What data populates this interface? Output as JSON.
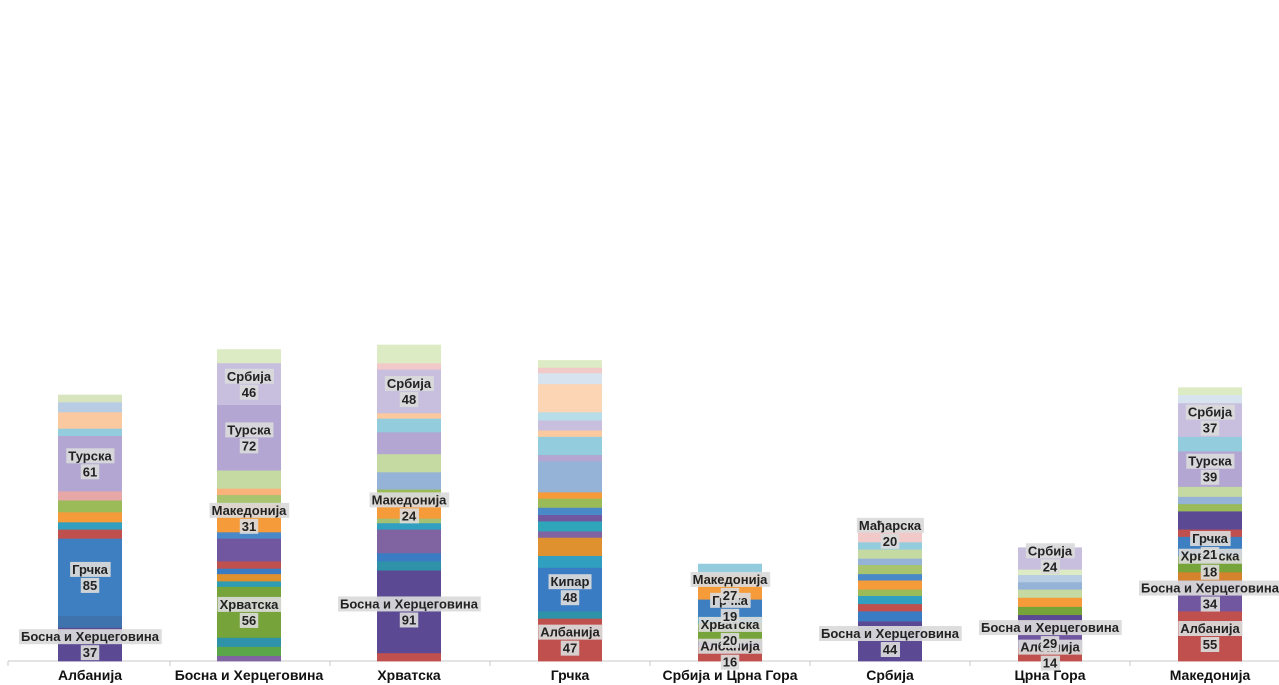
{
  "chart_data": {
    "type": "bar",
    "stacked": true,
    "categories": [
      "Албанија",
      "Босна и Херцеговина",
      "Хрватска",
      "Грчка",
      "Србија и Црна Гора",
      "Србија",
      "Црна Гора",
      "Македонија"
    ],
    "stacks": [
      {
        "category": "Албанија",
        "segments": [
          {
            "value": 37,
            "color": "#5b4a93",
            "label": "Босна и Херцеговина"
          },
          {
            "value": 13,
            "color": "#3e73ad"
          },
          {
            "value": 85,
            "color": "#3e7fc1",
            "label": "Грчка"
          },
          {
            "value": 10,
            "color": "#c0504d"
          },
          {
            "value": 8,
            "color": "#31a0c0"
          },
          {
            "value": 11,
            "color": "#f59b3a"
          },
          {
            "value": 13,
            "color": "#9bbb59"
          },
          {
            "value": 10,
            "color": "#e6a7a6"
          },
          {
            "value": 61,
            "color": "#b3a6d2",
            "label": "Турска"
          },
          {
            "value": 8,
            "color": "#93cddd"
          },
          {
            "value": 18,
            "color": "#fbc9a0"
          },
          {
            "value": 11,
            "color": "#b8cce4"
          },
          {
            "value": 8,
            "color": "#d7e4bd"
          }
        ]
      },
      {
        "category": "Босна и Херцеговина",
        "segments": [
          {
            "value": 6,
            "color": "#8064a2"
          },
          {
            "value": 10,
            "color": "#5aa648"
          },
          {
            "value": 10,
            "color": "#2e93a8"
          },
          {
            "value": 56,
            "color": "#77a33b",
            "label": "Хрватска"
          },
          {
            "value": 6,
            "color": "#2e9cb2"
          },
          {
            "value": 8,
            "color": "#e0912f"
          },
          {
            "value": 6,
            "color": "#3a7cc4"
          },
          {
            "value": 8,
            "color": "#c0504d"
          },
          {
            "value": 25,
            "color": "#7057a0"
          },
          {
            "value": 7,
            "color": "#4a89c8"
          },
          {
            "value": 31,
            "color": "#f59b3a",
            "label": "Македонија"
          },
          {
            "value": 10,
            "color": "#a9c46f"
          },
          {
            "value": 7,
            "color": "#f8b27a"
          },
          {
            "value": 20,
            "color": "#c5d9a2"
          },
          {
            "value": 72,
            "color": "#b3a6d2",
            "label": "Турска"
          },
          {
            "value": 46,
            "color": "#c8bfdf",
            "label": "Србија"
          },
          {
            "value": 15,
            "color": "#dcebc3"
          }
        ]
      },
      {
        "category": "Хрватска",
        "segments": [
          {
            "value": 9,
            "color": "#c0504d"
          },
          {
            "value": 91,
            "color": "#5b4a93",
            "label": "Босна и Херцеговина"
          },
          {
            "value": 10,
            "color": "#2e93a8"
          },
          {
            "value": 9,
            "color": "#3a7cc4"
          },
          {
            "value": 26,
            "color": "#8064a2"
          },
          {
            "value": 7,
            "color": "#31a0c0"
          },
          {
            "value": 5,
            "color": "#a4c072"
          },
          {
            "value": 24,
            "color": "#f59b3a",
            "label": "Македонија"
          },
          {
            "value": 8,
            "color": "#9bbb59"
          },
          {
            "value": 19,
            "color": "#95b3d7"
          },
          {
            "value": 20,
            "color": "#c5d9a2"
          },
          {
            "value": 24,
            "color": "#b3a6d2"
          },
          {
            "value": 15,
            "color": "#93cddd"
          },
          {
            "value": 6,
            "color": "#fbc9a0"
          },
          {
            "value": 48,
            "color": "#c8bfdf",
            "label": "Србија"
          },
          {
            "value": 7,
            "color": "#f2c9c9"
          },
          {
            "value": 20,
            "color": "#dcebc3"
          }
        ]
      },
      {
        "category": "Грчка",
        "segments": [
          {
            "value": 47,
            "color": "#c0504d",
            "label": "Албанија"
          },
          {
            "value": 8,
            "color": "#2e93a8"
          },
          {
            "value": 48,
            "color": "#3a7cc4",
            "label": "Кипар"
          },
          {
            "value": 13,
            "color": "#31a0c0"
          },
          {
            "value": 20,
            "color": "#e0912f"
          },
          {
            "value": 7,
            "color": "#8064a2"
          },
          {
            "value": 11,
            "color": "#2ea5b9"
          },
          {
            "value": 7,
            "color": "#7057a0"
          },
          {
            "value": 8,
            "color": "#4a89c8"
          },
          {
            "value": 10,
            "color": "#9bbb59"
          },
          {
            "value": 7,
            "color": "#f59b3a"
          },
          {
            "value": 34,
            "color": "#95b3d7"
          },
          {
            "value": 7,
            "color": "#b3a6d2"
          },
          {
            "value": 20,
            "color": "#93cddd"
          },
          {
            "value": 7,
            "color": "#fbc9a0"
          },
          {
            "value": 11,
            "color": "#c8bfdf"
          },
          {
            "value": 9,
            "color": "#b7dde8"
          },
          {
            "value": 31,
            "color": "#fcd5b5"
          },
          {
            "value": 12,
            "color": "#d7e4f0"
          },
          {
            "value": 6,
            "color": "#f2c9c9"
          },
          {
            "value": 8,
            "color": "#dcebc3"
          }
        ]
      },
      {
        "category": "Србија и Црна Гора",
        "segments": [
          {
            "value": 16,
            "color": "#c0504d",
            "label": "Албанија"
          },
          {
            "value": 6,
            "color": "#7057a0"
          },
          {
            "value": 20,
            "color": "#77a33b",
            "label": "Хрватска"
          },
          {
            "value": 7,
            "color": "#31a0c0"
          },
          {
            "value": 19,
            "color": "#3e7fc1",
            "label": "Грчка"
          },
          {
            "value": 27,
            "color": "#f59b3a",
            "label": "Македонија"
          },
          {
            "value": 12,
            "color": "#93cddd"
          }
        ]
      },
      {
        "category": "Србија",
        "segments": [
          {
            "value": 44,
            "color": "#5b4a93",
            "label": "Босна и Херцеговина"
          },
          {
            "value": 11,
            "color": "#3a7cc4"
          },
          {
            "value": 8,
            "color": "#c0504d"
          },
          {
            "value": 9,
            "color": "#31a0c0"
          },
          {
            "value": 7,
            "color": "#9bbb59"
          },
          {
            "value": 10,
            "color": "#f59b3a"
          },
          {
            "value": 7,
            "color": "#4a89c8"
          },
          {
            "value": 10,
            "color": "#a9c46f"
          },
          {
            "value": 7,
            "color": "#95b3d7"
          },
          {
            "value": 10,
            "color": "#c5d9a2"
          },
          {
            "value": 8,
            "color": "#93cddd"
          },
          {
            "value": 20,
            "color": "#f2c9c9",
            "label": "Мађарска"
          }
        ]
      },
      {
        "category": "Црна Гора",
        "segments": [
          {
            "value": 14,
            "color": "#c0504d",
            "label": "Албанија"
          },
          {
            "value": 29,
            "color": "#7057a0",
            "label": "Босна и Херцеговина"
          },
          {
            "value": 8,
            "color": "#5b4a93"
          },
          {
            "value": 9,
            "color": "#77a33b"
          },
          {
            "value": 10,
            "color": "#f59b3a"
          },
          {
            "value": 9,
            "color": "#c5d9a2"
          },
          {
            "value": 8,
            "color": "#95b3d7"
          },
          {
            "value": 8,
            "color": "#b8cce4"
          },
          {
            "value": 6,
            "color": "#dcebc3"
          },
          {
            "value": 24,
            "color": "#c8bfdf",
            "label": "Србија"
          }
        ]
      },
      {
        "category": "Македонија",
        "segments": [
          {
            "value": 55,
            "color": "#c0504d",
            "label": "Албанија"
          },
          {
            "value": 34,
            "color": "#7057a0",
            "label": "Босна и Херцеговина"
          },
          {
            "value": 9,
            "color": "#d4822c"
          },
          {
            "value": 18,
            "color": "#77a33b",
            "label": "Хрватска"
          },
          {
            "value": 21,
            "color": "#3e7fc1",
            "label": "Грчка"
          },
          {
            "value": 8,
            "color": "#c0504d"
          },
          {
            "value": 20,
            "color": "#5b4a93"
          },
          {
            "value": 8,
            "color": "#9bbb59"
          },
          {
            "value": 8,
            "color": "#95b3d7"
          },
          {
            "value": 11,
            "color": "#c5d9a2"
          },
          {
            "value": 39,
            "color": "#b3a6d2",
            "label": "Турска"
          },
          {
            "value": 16,
            "color": "#93cddd"
          },
          {
            "value": 37,
            "color": "#c8bfdf",
            "label": "Србија"
          },
          {
            "value": 9,
            "color": "#d7e4f0"
          },
          {
            "value": 8,
            "color": "#dcebc3"
          }
        ]
      }
    ]
  }
}
